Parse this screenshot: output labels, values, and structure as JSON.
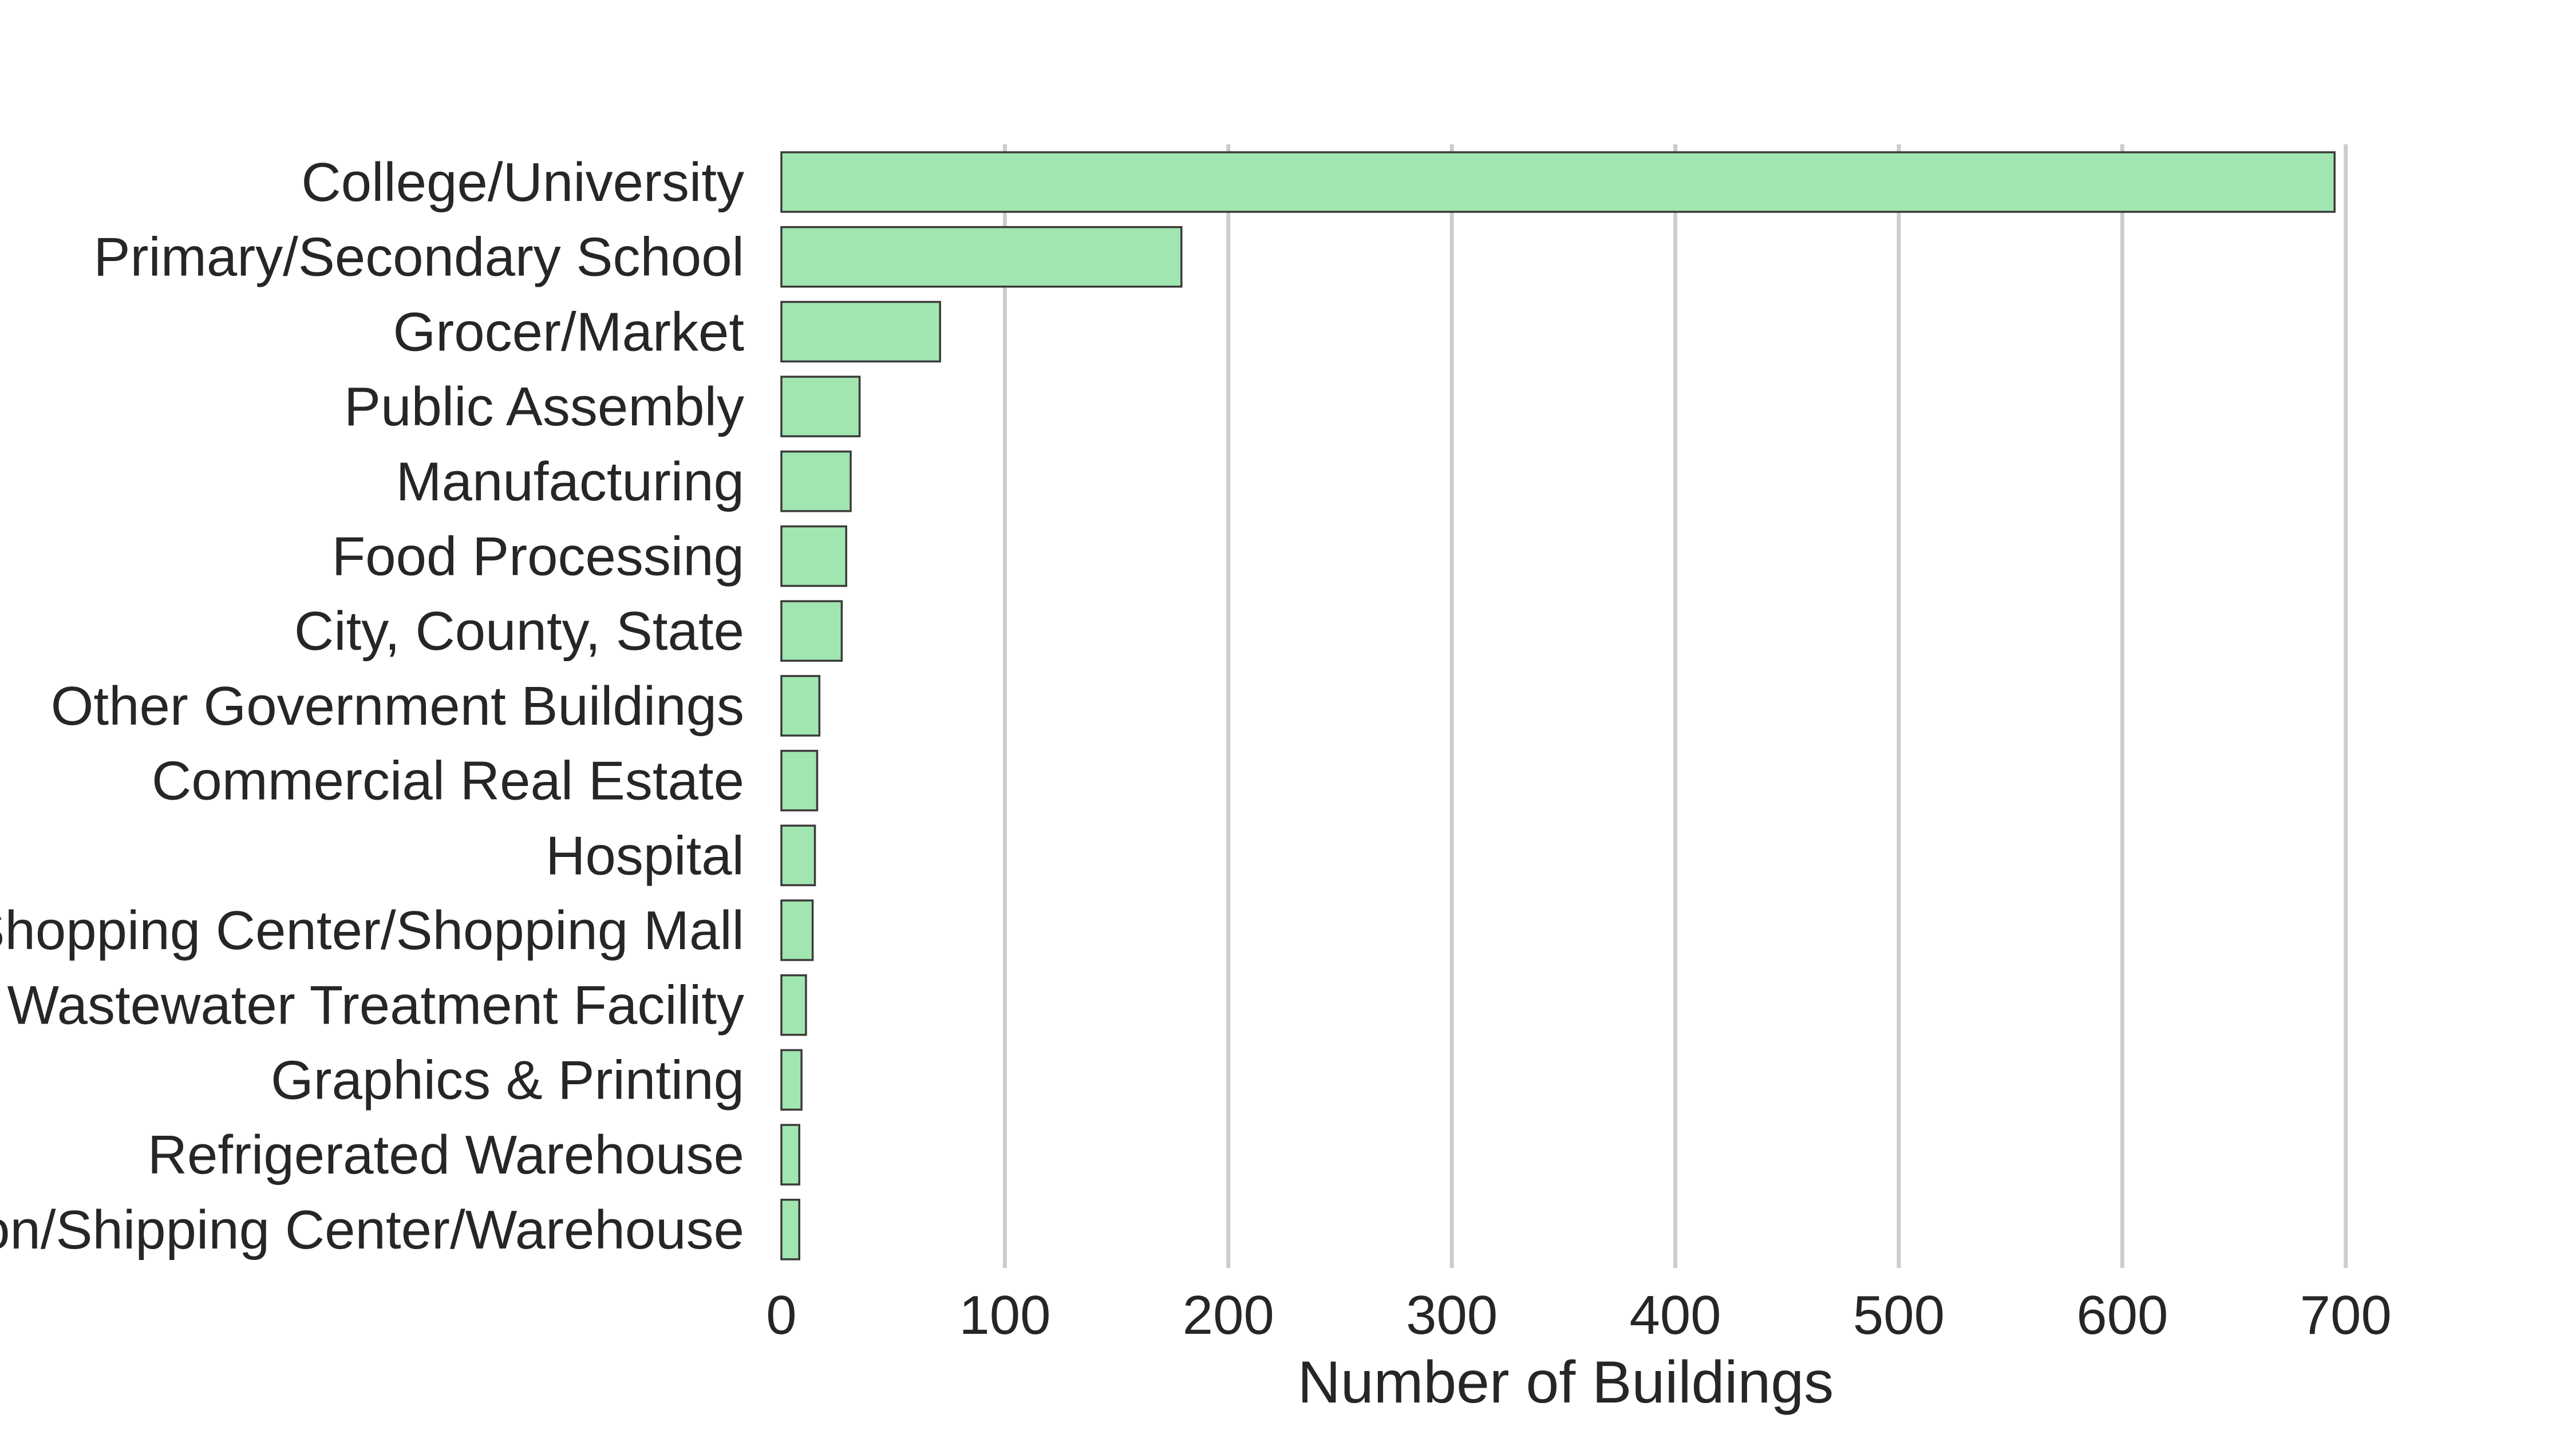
{
  "chart_data": {
    "type": "bar",
    "orientation": "horizontal",
    "title": "",
    "xlabel": "Number of Buildings",
    "ylabel": "",
    "xlim": [
      0,
      730
    ],
    "xticks": [
      0,
      100,
      200,
      300,
      400,
      500,
      600,
      700
    ],
    "grid": "vertical",
    "bar_color": "#a1e6b0",
    "bar_edge_color": "#3a3a3a",
    "grid_color": "#cccccc",
    "categories": [
      "College/University",
      "Primary/Secondary School",
      "Grocer/Market",
      "Public Assembly",
      "Manufacturing",
      "Food Processing",
      "City, County, State",
      "Other Government Buildings",
      "Commercial Real Estate",
      "Hospital",
      "Shopping Center/Shopping Mall",
      "& Wastewater Treatment Facility",
      "Graphics & Printing",
      "Refrigerated Warehouse",
      "tion/Shipping Center/Warehouse"
    ],
    "values": [
      695,
      179,
      71,
      35,
      31,
      29,
      27,
      17,
      16,
      15,
      14,
      11,
      9,
      8,
      8
    ]
  }
}
